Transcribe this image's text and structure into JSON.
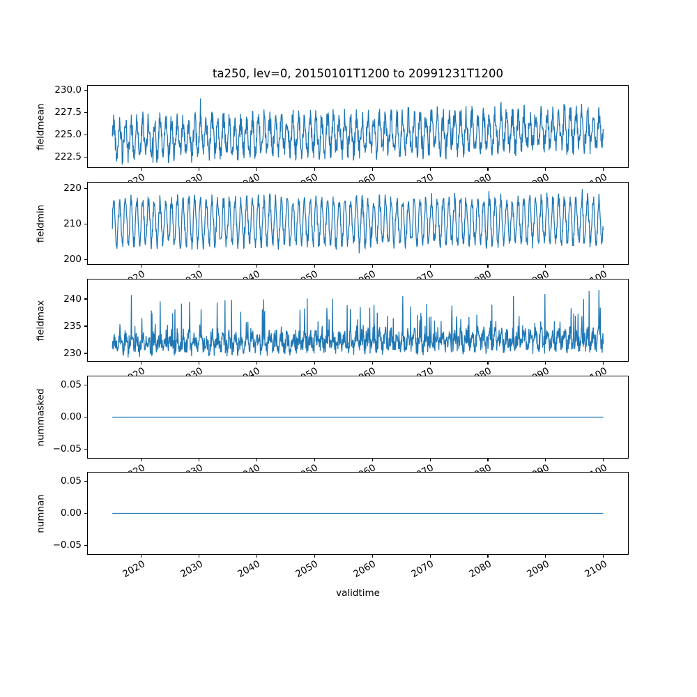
{
  "chart_data": {
    "type": "line",
    "title": "ta250, lev=0, 20150101T1200 to 20991231T1200",
    "xlabel": "validtime",
    "line_color": "#1f77b4",
    "grid": false,
    "legend": "none",
    "x_axis": {
      "xlim": [
        2010.75,
        2104.25
      ],
      "ticks": [
        2020,
        2030,
        2040,
        2050,
        2060,
        2070,
        2080,
        2090,
        2100
      ],
      "tick_labels": [
        "2020",
        "2030",
        "2040",
        "2050",
        "2060",
        "2070",
        "2080",
        "2090",
        "2100"
      ],
      "tick_rotation_deg": 30,
      "data_start": 2015.0,
      "data_end": 2099.96
    },
    "subplots": [
      {
        "name": "fieldmean",
        "ylabel": "fieldmean",
        "ylim": [
          221.4,
          230.5
        ],
        "yticks": [
          222.5,
          225.0,
          227.5,
          230.0
        ],
        "ytick_labels": [
          "222.5",
          "225.0",
          "227.5",
          "230.0"
        ],
        "observed_range": [
          221.8,
          230.0
        ],
        "series_model": {
          "generator": "seasonal",
          "x_start": 2015.0,
          "x_end": 2099.96,
          "points": 1500,
          "mean": 224.6,
          "trend": 1.0,
          "seasonal_amp": 1.8,
          "noise": 1.2,
          "spike_prob": 0.02,
          "spike_amp": 2.5,
          "spike_sign": 0,
          "clip": [
            221.7,
            230.2
          ],
          "seed": 42
        }
      },
      {
        "name": "fieldmin",
        "ylabel": "fieldmin",
        "ylim": [
          198.8,
          221.6
        ],
        "yticks": [
          200,
          210,
          220
        ],
        "ytick_labels": [
          "200",
          "210",
          "220"
        ],
        "observed_range": [
          199.5,
          221.0
        ],
        "series_model": {
          "generator": "seasonal",
          "x_start": 2015.0,
          "x_end": 2099.96,
          "points": 1500,
          "mean": 210.5,
          "trend": 0.5,
          "seasonal_amp": 6.0,
          "noise": 1.9,
          "spike_prob": 0.035,
          "spike_amp": 4.5,
          "spike_sign": 0,
          "clip": [
            199.6,
            221.0
          ],
          "seed": 7
        }
      },
      {
        "name": "fieldmax",
        "ylabel": "fieldmax",
        "ylim": [
          228.6,
          243.6
        ],
        "yticks": [
          230,
          235,
          240
        ],
        "ytick_labels": [
          "230",
          "235",
          "240"
        ],
        "observed_range": [
          229.2,
          243.0
        ],
        "series_model": {
          "generator": "seasonal",
          "x_start": 2015.0,
          "x_end": 2099.96,
          "points": 1500,
          "mean": 231.8,
          "trend": 0.8,
          "seasonal_amp": 1.0,
          "noise": 1.7,
          "spike_prob": 0.1,
          "spike_amp": 9.0,
          "spike_sign": 1,
          "clip": [
            229.0,
            243.2
          ],
          "seed": 99
        }
      },
      {
        "name": "nummasked",
        "ylabel": "nummasked",
        "ylim": [
          -0.0635,
          0.0635
        ],
        "yticks": [
          -0.05,
          0.0,
          0.05
        ],
        "ytick_labels": [
          "−0.05",
          "0.00",
          "0.05"
        ],
        "observed_range": [
          0.0,
          0.0
        ],
        "series_model": {
          "generator": "constant",
          "x_start": 2015.0,
          "x_end": 2099.96,
          "value": 0.0
        }
      },
      {
        "name": "numnan",
        "ylabel": "numnan",
        "ylim": [
          -0.0635,
          0.0635
        ],
        "yticks": [
          -0.05,
          0.0,
          0.05
        ],
        "ytick_labels": [
          "−0.05",
          "0.00",
          "0.05"
        ],
        "observed_range": [
          0.0,
          0.0
        ],
        "series_model": {
          "generator": "constant",
          "x_start": 2015.0,
          "x_end": 2099.96,
          "value": 0.0
        }
      }
    ]
  }
}
